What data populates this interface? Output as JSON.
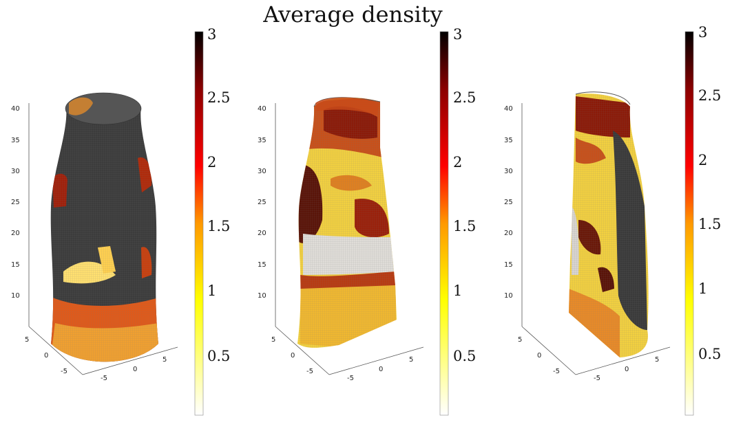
{
  "chart_data": [
    {
      "type": "heatmap",
      "title": "Average density",
      "view": "full cylinder",
      "colormap": [
        "#ffffff",
        "#ffff00",
        "#ff9900",
        "#ff0000",
        "#8b0000",
        "#000000"
      ],
      "clim": [
        0,
        3
      ],
      "colorbar_ticks": [
        "0.5",
        "1",
        "1.5",
        "2",
        "2.5",
        "3"
      ],
      "z_ticks": [
        "10",
        "15",
        "20",
        "25",
        "30",
        "35",
        "40"
      ],
      "x_ticks": [
        "-5",
        "0",
        "5"
      ],
      "y_ticks": [
        "-5",
        "0",
        "5"
      ]
    },
    {
      "type": "heatmap",
      "view": "half section",
      "clim": [
        0,
        3
      ],
      "colorbar_ticks": [
        "0.5",
        "1",
        "1.5",
        "2",
        "2.5",
        "3"
      ],
      "z_ticks": [
        "10",
        "15",
        "20",
        "25",
        "30",
        "35",
        "40"
      ],
      "x_ticks": [
        "-5",
        "0",
        "5"
      ],
      "y_ticks": [
        "-5",
        "0",
        "5"
      ]
    },
    {
      "type": "heatmap",
      "view": "quarter section",
      "clim": [
        0,
        3
      ],
      "colorbar_ticks": [
        "0.5",
        "1",
        "1.5",
        "2",
        "2.5",
        "3"
      ],
      "z_ticks": [
        "10",
        "15",
        "20",
        "25",
        "30",
        "35",
        "40"
      ],
      "x_ticks": [
        "-5",
        "0",
        "5"
      ],
      "y_ticks": [
        "-5",
        "0",
        "5"
      ]
    }
  ]
}
